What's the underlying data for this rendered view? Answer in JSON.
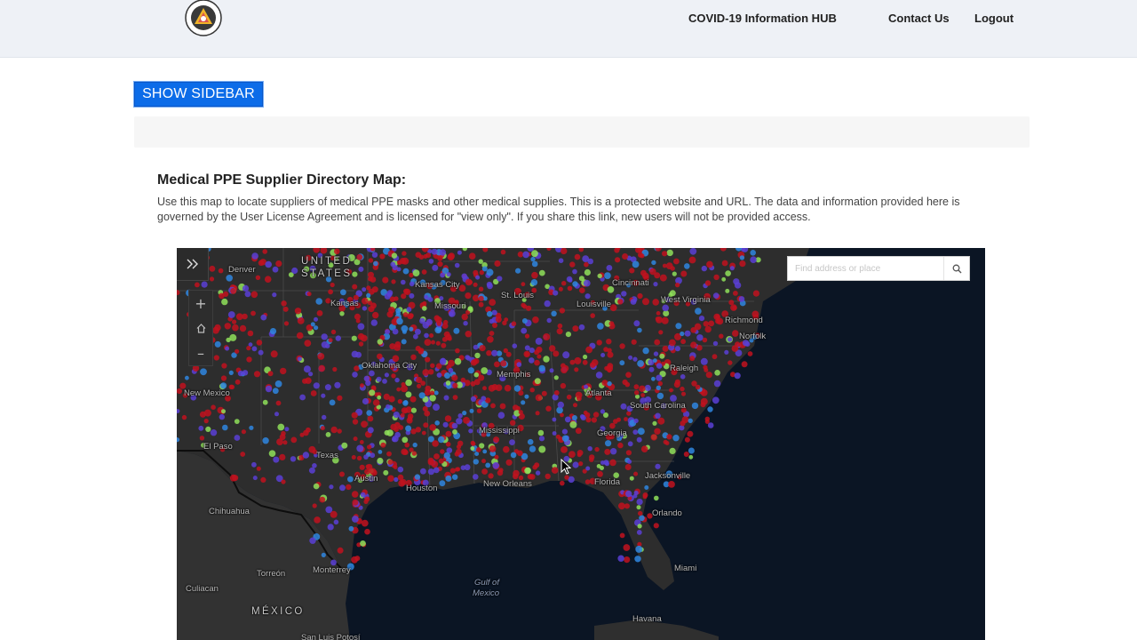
{
  "header": {
    "logo_alt": "Consortium logo",
    "nav": [
      {
        "label": "COVID-19 Information HUB"
      },
      {
        "label": "Contact Us"
      },
      {
        "label": "Logout"
      }
    ]
  },
  "sidebar_toggle": {
    "label": "SHOW SIDEBAR"
  },
  "content": {
    "title": "Medical PPE Supplier Directory Map:",
    "description": "Use this map to locate suppliers of medical PPE masks and other medical supplies. This is a protected website and URL. The data and information provided here is governed by the User License Agreement and is licensed for \"view only\". If you share this link, new users will not be provided access."
  },
  "map": {
    "search_placeholder": "Find address or place",
    "controls": {
      "zoom_in": "+",
      "home": "⌂",
      "zoom_out": "–"
    },
    "labels": {
      "united": "UNITED",
      "states": "STATES",
      "denver": "Denver",
      "kansas_city": "Kansas City",
      "st_louis": "St. Louis",
      "cincinnati": "Cincinnati",
      "kansas": "Kansas",
      "missouri": "Missouri",
      "louisville": "Louisville",
      "west_virginia": "West Virginia",
      "richmond": "Richmond",
      "norfolk": "Norfolk",
      "oklahoma_city": "Oklahoma City",
      "memphis": "Memphis",
      "new_mexico": "New Mexico",
      "el_paso": "El Paso",
      "texas": "Texas",
      "mississippi": "Mississippi",
      "georgia": "Georgia",
      "austin": "Austin",
      "houston": "Houston",
      "new_orleans": "New Orleans",
      "jacksonville": "Jacksonville",
      "florida": "Florida",
      "orlando": "Orlando",
      "miami": "Miami",
      "chihuahua": "Chihuahua",
      "torreon": "Torreón",
      "monterrey": "Monterrey",
      "culiacan": "Culiacan",
      "mexico": "MÉXICO",
      "gulf_1": "Gulf of",
      "gulf_2": "Mexico",
      "havana": "Havana",
      "san_luis": "San Luis Potosí",
      "south_carolina": "South Carolina",
      "atlanta": "Atlanta",
      "raleigh": "Raleigh"
    },
    "colors": {
      "land": "#2b2b2b",
      "ocean": "#0b1524",
      "supplier_primary": "#c1121f",
      "supplier_secondary": "#5a3fd6",
      "supplier_tertiary": "#2f86e0",
      "supplier_accent": "#8fe05a"
    }
  }
}
